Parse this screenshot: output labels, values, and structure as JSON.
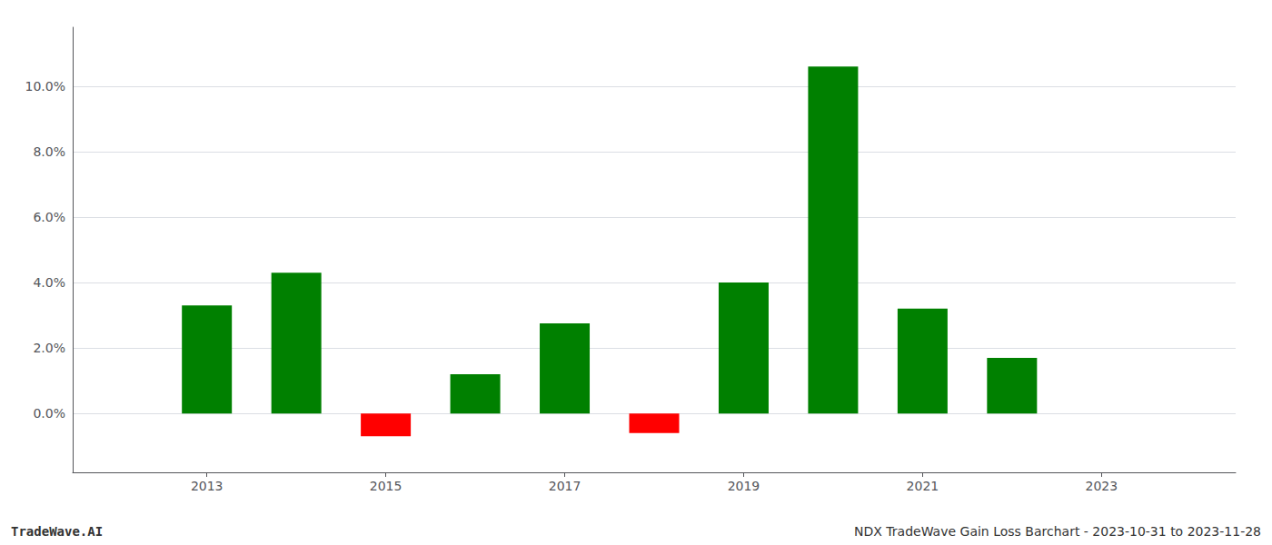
{
  "chart_data": {
    "type": "bar",
    "x": [
      2013,
      2014,
      2015,
      2016,
      2017,
      2018,
      2019,
      2020,
      2021,
      2022
    ],
    "values": [
      0.033,
      0.043,
      -0.007,
      0.012,
      0.0275,
      -0.006,
      0.04,
      0.106,
      0.032,
      0.017
    ],
    "colors": [
      "#008000",
      "#008000",
      "#ff0000",
      "#008000",
      "#008000",
      "#ff0000",
      "#008000",
      "#008000",
      "#008000",
      "#008000"
    ],
    "xlim": [
      2011.5,
      2024.5
    ],
    "xticks": [
      2013,
      2015,
      2017,
      2019,
      2021,
      2023
    ],
    "ylim": [
      -0.018,
      0.118
    ],
    "yticks": [
      {
        "value": 0.0,
        "label": "0.0%"
      },
      {
        "value": 0.02,
        "label": "2.0%"
      },
      {
        "value": 0.04,
        "label": "4.0%"
      },
      {
        "value": 0.06,
        "label": "6.0%"
      },
      {
        "value": 0.08,
        "label": "8.0%"
      },
      {
        "value": 0.1,
        "label": "10.0%"
      }
    ],
    "grid": true,
    "annotations": [
      "TradeWave.AI",
      "NDX TradeWave Gain Loss Barchart - 2023-10-31 to 2023-11-28"
    ]
  }
}
